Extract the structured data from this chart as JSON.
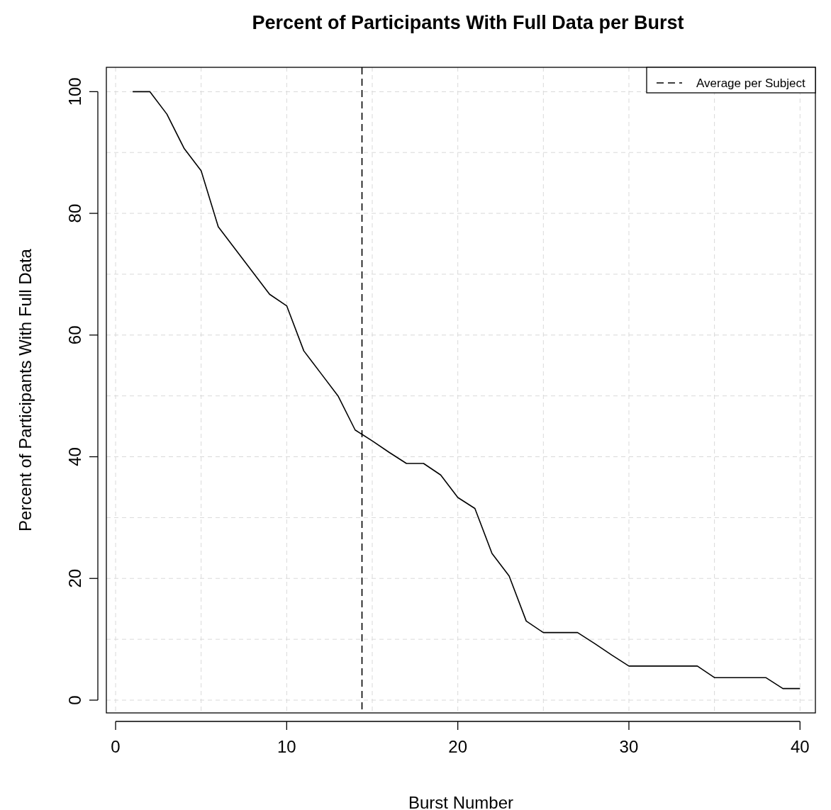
{
  "chart_data": {
    "type": "line",
    "title": "Percent of Participants With Full Data per Burst",
    "xlabel": "Burst Number",
    "ylabel": "Percent of Participants With Full Data",
    "x": [
      1,
      2,
      3,
      4,
      5,
      6,
      7,
      8,
      9,
      10,
      11,
      12,
      13,
      14,
      15,
      16,
      17,
      18,
      19,
      20,
      21,
      22,
      23,
      24,
      25,
      26,
      27,
      28,
      29,
      30,
      31,
      32,
      33,
      34,
      35,
      36,
      37,
      38,
      39,
      40
    ],
    "series": [
      {
        "color": "#000000",
        "values": [
          100,
          100,
          96.3,
          90.7,
          87,
          77.8,
          74.1,
          70.4,
          66.7,
          64.8,
          57.4,
          53.7,
          50,
          44.4,
          42.6,
          40.7,
          38.9,
          38.9,
          37,
          33.3,
          31.5,
          24.1,
          20.4,
          13,
          11.1,
          11.1,
          11.1,
          9.3,
          7.4,
          5.6,
          5.6,
          5.6,
          5.6,
          5.6,
          3.7,
          3.7,
          3.7,
          3.7,
          1.9,
          1.9
        ]
      }
    ],
    "xlim": [
      -0.54,
      40.9
    ],
    "ylim": [
      -2.1,
      104
    ],
    "xticks": [
      0,
      {
        "value": 5,
        "label": null
      },
      10,
      {
        "value": 15,
        "label": null
      },
      20,
      {
        "value": 25,
        "label": null
      },
      30,
      {
        "value": 35,
        "label": null
      },
      40
    ],
    "yticks": [
      0,
      {
        "value": 10,
        "label": null
      },
      20,
      {
        "value": 30,
        "label": null
      },
      40,
      {
        "value": 50,
        "label": null
      },
      60,
      {
        "value": 70,
        "label": null
      },
      80,
      {
        "value": 90,
        "label": null
      },
      100
    ],
    "ref_lines": [
      {
        "axis": "x",
        "value": 14.4,
        "label": "Average per Subject",
        "color": "#000000",
        "line_style": "dashed"
      }
    ],
    "grid": true,
    "legend": "top right",
    "marker": "none",
    "line_style": "solid"
  }
}
